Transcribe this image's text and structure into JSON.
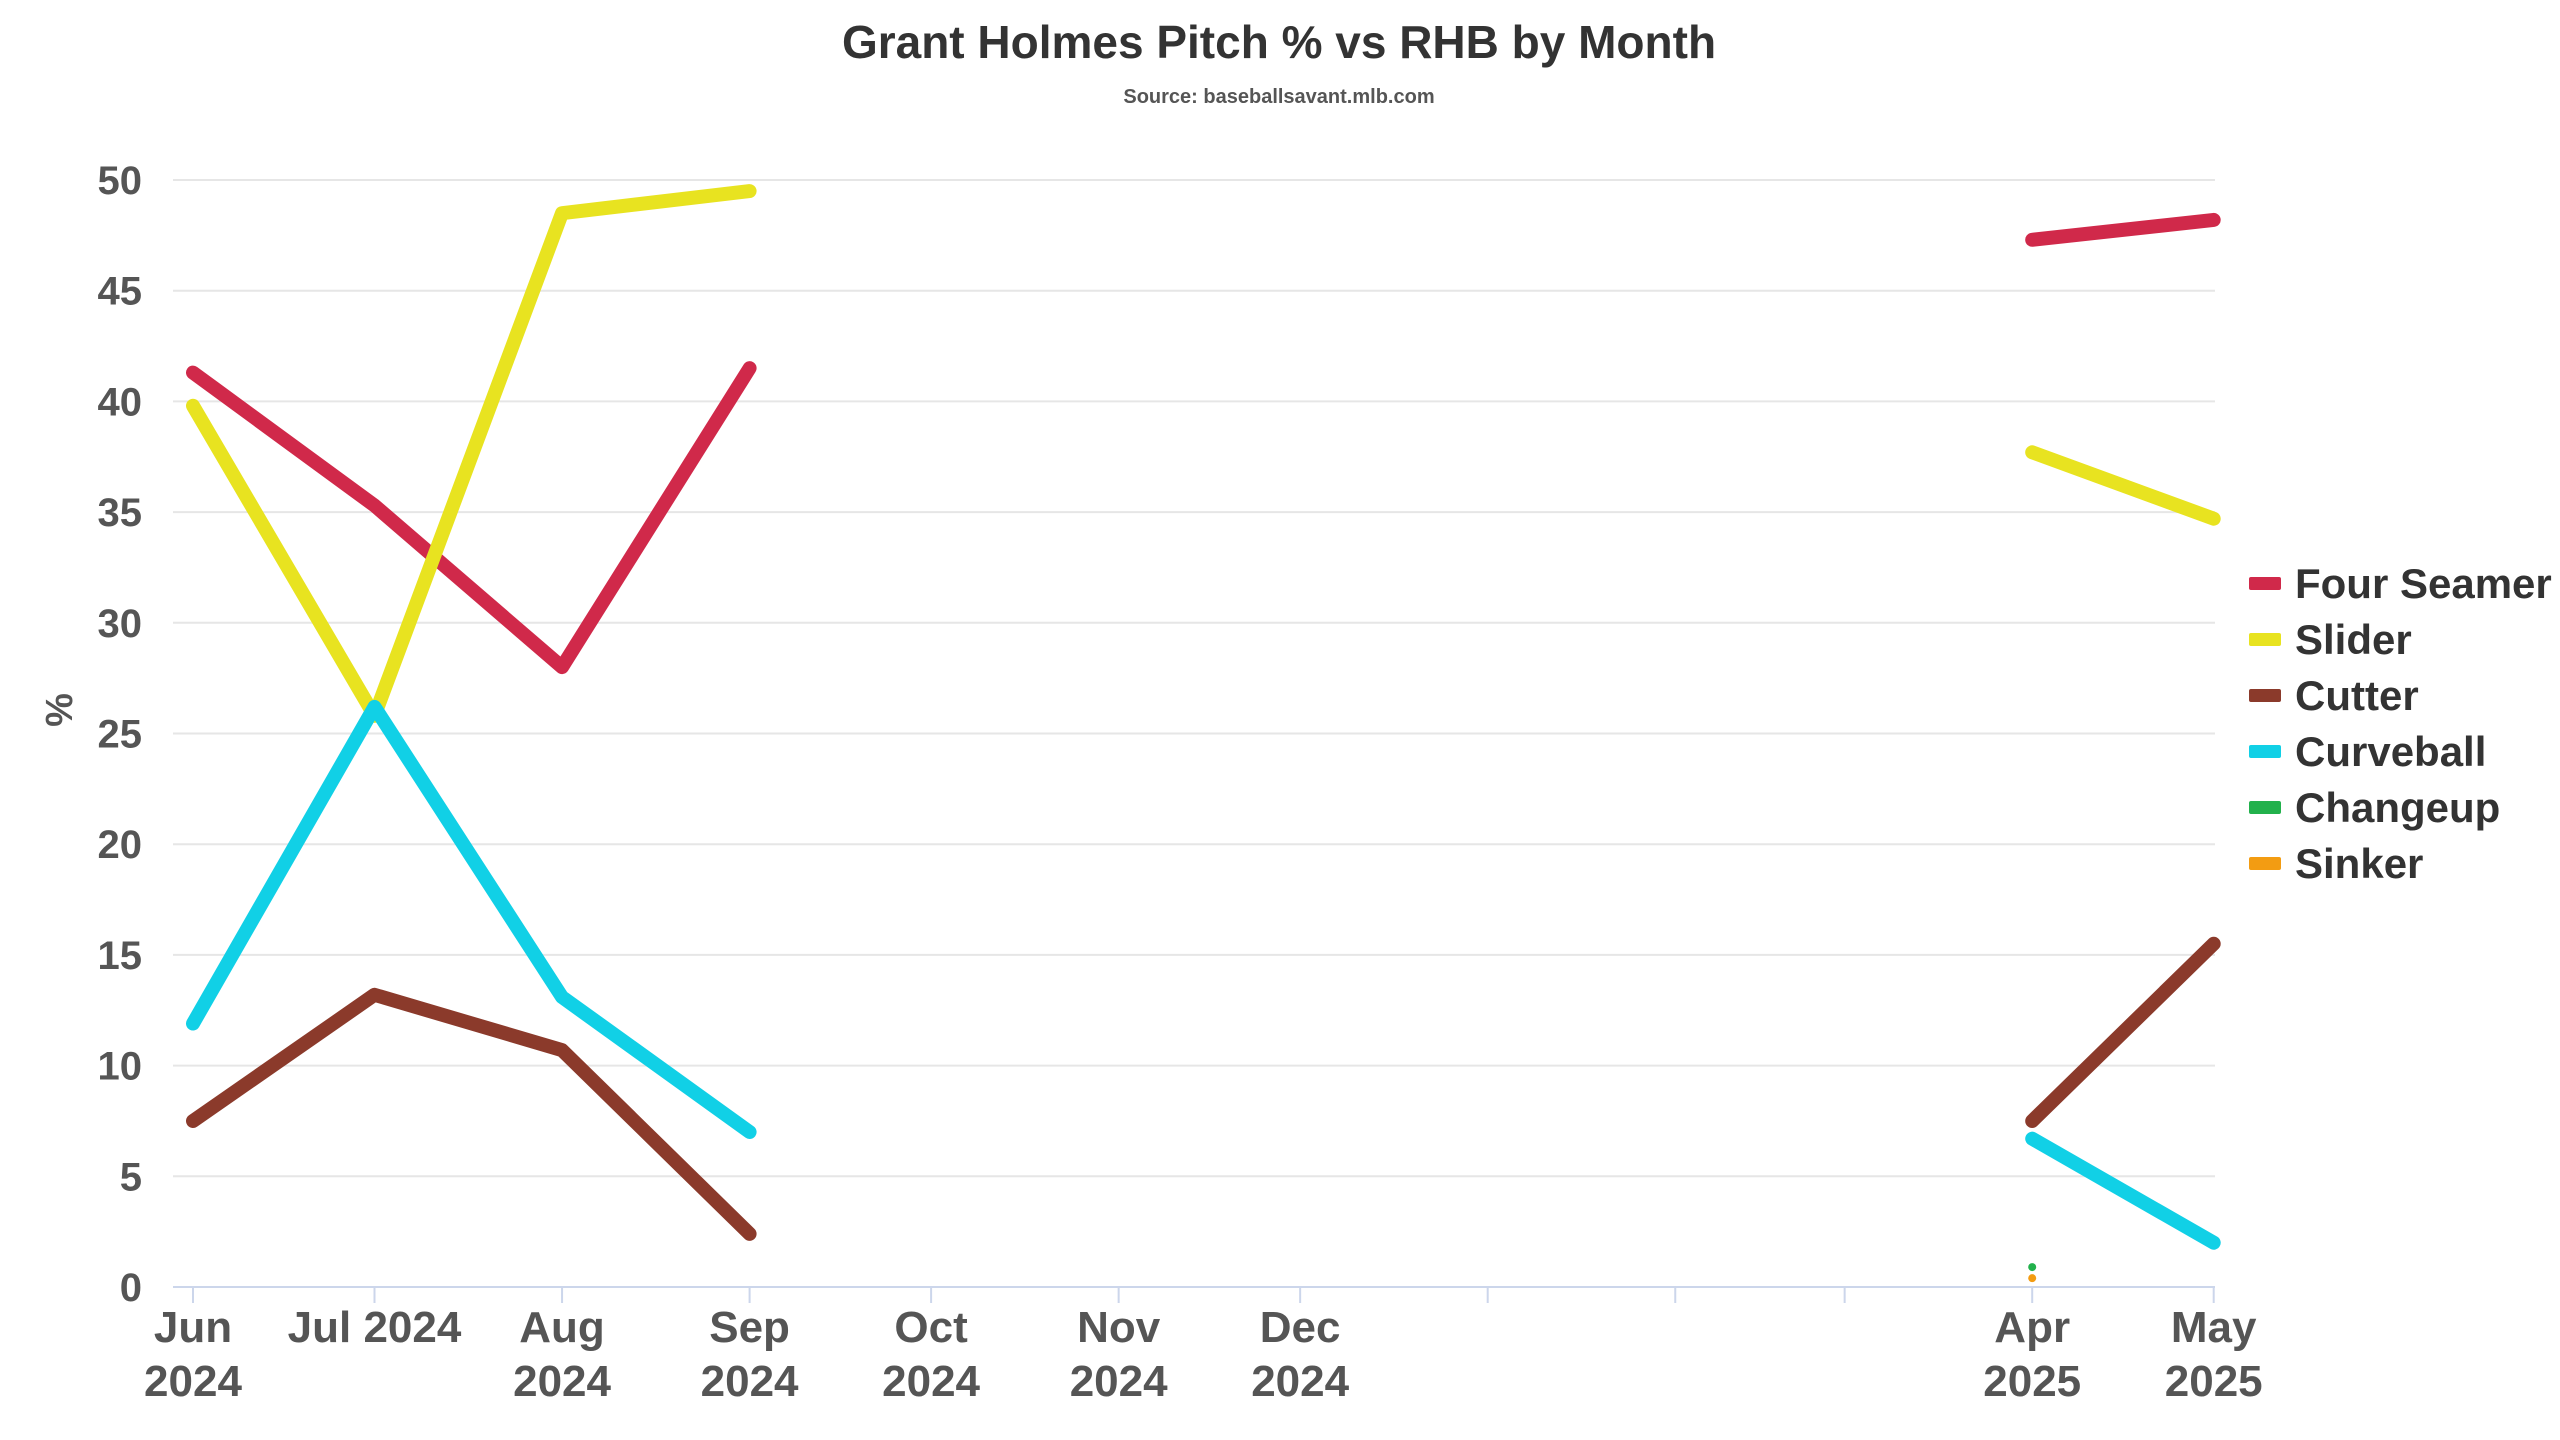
{
  "chart_data": {
    "type": "line",
    "title": "Grant Holmes Pitch % vs RHB by Month",
    "subtitle": "Source: baseballsavant.mlb.com",
    "ylabel": "%",
    "ylim": [
      0,
      50
    ],
    "yticks": [
      0,
      5,
      10,
      15,
      20,
      25,
      30,
      35,
      40,
      45,
      50
    ],
    "grid": true,
    "legend": "right",
    "x_dates": [
      "2024-06-01",
      "2024-07-01",
      "2024-08-01",
      "2024-09-01",
      "2024-10-01",
      "2024-11-01",
      "2024-12-01",
      "2025-01-01",
      "2025-02-01",
      "2025-03-01",
      "2025-04-01",
      "2025-05-01"
    ],
    "x_tick_labels": [
      [
        "Jun",
        "2024"
      ],
      [
        "Jul 2024",
        ""
      ],
      [
        "Aug",
        "2024"
      ],
      [
        "Sep",
        "2024"
      ],
      [
        "Oct",
        "2024"
      ],
      [
        "Nov",
        "2024"
      ],
      [
        "Dec",
        "2024"
      ],
      [
        "",
        ""
      ],
      [
        "",
        ""
      ],
      [
        "",
        ""
      ],
      [
        "Apr",
        "2025"
      ],
      [
        "May",
        "2025"
      ]
    ],
    "series": [
      {
        "name": "Four Seamer",
        "color": "#d0294a",
        "points": [
          [
            "2024-06-01",
            41.3
          ],
          [
            "2024-07-01",
            35.3
          ],
          [
            "2024-08-01",
            28.0
          ],
          [
            "2024-09-01",
            41.5
          ],
          [
            "2025-04-01",
            47.3
          ],
          [
            "2025-05-01",
            48.2
          ]
        ]
      },
      {
        "name": "Slider",
        "color": "#e8e320",
        "points": [
          [
            "2024-06-01",
            39.8
          ],
          [
            "2024-07-01",
            25.8
          ],
          [
            "2024-08-01",
            48.5
          ],
          [
            "2024-09-01",
            49.5
          ],
          [
            "2025-04-01",
            37.7
          ],
          [
            "2025-05-01",
            34.7
          ]
        ]
      },
      {
        "name": "Cutter",
        "color": "#8b3a2b",
        "points": [
          [
            "2024-06-01",
            7.5
          ],
          [
            "2024-07-01",
            13.2
          ],
          [
            "2024-08-01",
            10.7
          ],
          [
            "2024-09-01",
            2.4
          ],
          [
            "2025-04-01",
            7.5
          ],
          [
            "2025-05-01",
            15.5
          ]
        ]
      },
      {
        "name": "Curveball",
        "color": "#11d0e6",
        "points": [
          [
            "2024-06-01",
            11.9
          ],
          [
            "2024-07-01",
            26.2
          ],
          [
            "2024-08-01",
            13.1
          ],
          [
            "2024-09-01",
            7.0
          ],
          [
            "2025-04-01",
            6.7
          ],
          [
            "2025-05-01",
            2.0
          ]
        ]
      },
      {
        "name": "Changeup",
        "color": "#22b14c",
        "points": [
          [
            "2025-04-01",
            0.9
          ]
        ]
      },
      {
        "name": "Sinker",
        "color": "#f39c12",
        "points": [
          [
            "2025-04-01",
            0.4
          ]
        ]
      }
    ]
  }
}
